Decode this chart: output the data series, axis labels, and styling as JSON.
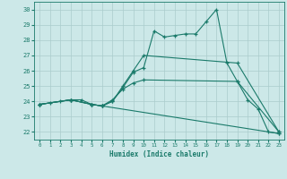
{
  "xlabel": "Humidex (Indice chaleur)",
  "xlim": [
    -0.5,
    23.5
  ],
  "ylim": [
    21.5,
    30.5
  ],
  "yticks": [
    22,
    23,
    24,
    25,
    26,
    27,
    28,
    29,
    30
  ],
  "xticks": [
    0,
    1,
    2,
    3,
    4,
    5,
    6,
    7,
    8,
    9,
    10,
    11,
    12,
    13,
    14,
    15,
    16,
    17,
    18,
    19,
    20,
    21,
    22,
    23
  ],
  "bg_color": "#cce8e8",
  "grid_color": "#aacccc",
  "line_color": "#1a7a6a",
  "line1_x": [
    0,
    1,
    2,
    3,
    4,
    5,
    6,
    7,
    8,
    9,
    10,
    11,
    12,
    13,
    14,
    15,
    16,
    17,
    18,
    19,
    20,
    21,
    22,
    23
  ],
  "line1_y": [
    23.8,
    23.9,
    24.0,
    24.1,
    24.1,
    23.8,
    23.7,
    24.0,
    24.9,
    25.9,
    26.2,
    28.6,
    28.2,
    28.3,
    28.4,
    28.4,
    29.2,
    30.0,
    26.5,
    25.3,
    24.1,
    23.5,
    22.0,
    21.9
  ],
  "line2_x": [
    0,
    3,
    5,
    6,
    7,
    8,
    9,
    10,
    19,
    23
  ],
  "line2_y": [
    23.8,
    24.1,
    23.8,
    23.7,
    24.0,
    25.0,
    26.0,
    27.0,
    26.5,
    22.0
  ],
  "line3_x": [
    0,
    3,
    5,
    6,
    7,
    8,
    9,
    10,
    19,
    23
  ],
  "line3_y": [
    23.8,
    24.1,
    23.8,
    23.7,
    24.1,
    24.8,
    25.2,
    25.4,
    25.3,
    22.0
  ],
  "line4_x": [
    0,
    3,
    5,
    6,
    23
  ],
  "line4_y": [
    23.8,
    24.1,
    23.8,
    23.7,
    21.9
  ]
}
